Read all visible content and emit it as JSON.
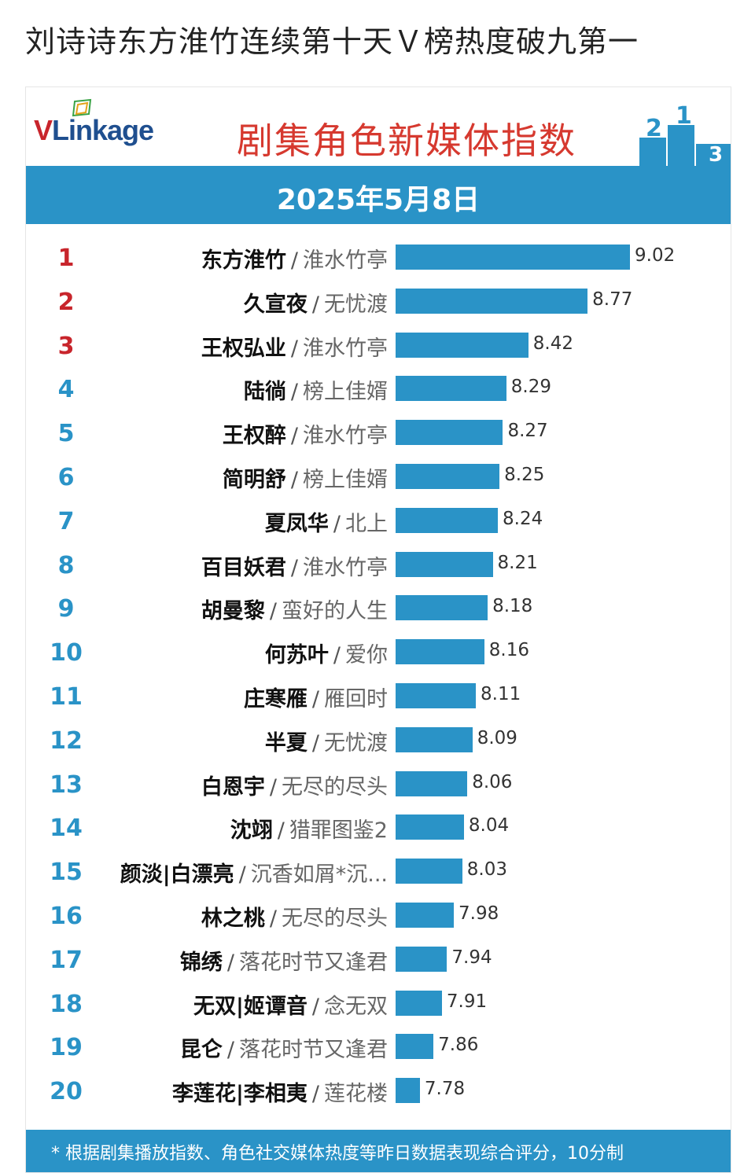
{
  "post": {
    "title": "刘诗诗东方淮竹连续第十天Ｖ榜热度破九第一"
  },
  "header": {
    "logo_v": "V",
    "logo_rest": "Linkage",
    "title": "剧集角色新媒体指数",
    "podium_digits": [
      "2",
      "1",
      "3"
    ],
    "date": "2025年5月8日"
  },
  "footer": {
    "note": "* 根据剧集播放指数、角色社交媒体热度等昨日数据表现综合评分，10分制"
  },
  "colors": {
    "bar": "#2a93c7",
    "rank_top3": "#c8252c",
    "rank_rest": "#2a93c7",
    "title": "#d6392f"
  },
  "chart_data": {
    "type": "bar",
    "orientation": "horizontal",
    "title": "剧集角色新媒体指数",
    "subtitle": "2025年5月8日",
    "ranks": [
      "1",
      "2",
      "3",
      "4",
      "5",
      "6",
      "7",
      "8",
      "9",
      "10",
      "11",
      "12",
      "13",
      "14",
      "15",
      "16",
      "17",
      "18",
      "19",
      "20"
    ],
    "names": [
      "东方淮竹",
      "久宣夜",
      "王权弘业",
      "陆徜",
      "王权醉",
      "简明舒",
      "夏凤华",
      "百目妖君",
      "胡曼黎",
      "何苏叶",
      "庄寒雁",
      "半夏",
      "白恩宇",
      "沈翊",
      "颜淡|白漂亮",
      "林之桃",
      "锦绣",
      "无双|姬谭音",
      "昆仑",
      "李莲花|李相夷"
    ],
    "shows": [
      "淮水竹亭",
      "无忧渡",
      "淮水竹亭",
      "榜上佳婿",
      "淮水竹亭",
      "榜上佳婿",
      "北上",
      "淮水竹亭",
      "蛮好的人生",
      "爱你",
      "雁回时",
      "无忧渡",
      "无尽的尽头",
      "猎罪图鉴2",
      "沉香如屑*沉...",
      "无尽的尽头",
      "落花时节又逢君",
      "念无双",
      "落花时节又逢君",
      "莲花楼"
    ],
    "separator": "/",
    "values": [
      9.02,
      8.77,
      8.42,
      8.29,
      8.27,
      8.25,
      8.24,
      8.21,
      8.18,
      8.16,
      8.11,
      8.09,
      8.06,
      8.04,
      8.03,
      7.98,
      7.94,
      7.91,
      7.86,
      7.78
    ],
    "labels": [
      "9.02",
      "8.77",
      "8.42",
      "8.29",
      "8.27",
      "8.25",
      "8.24",
      "8.21",
      "8.18",
      "8.16",
      "8.11",
      "8.09",
      "8.06",
      "8.04",
      "8.03",
      "7.98",
      "7.94",
      "7.91",
      "7.86",
      "7.78"
    ]
  }
}
